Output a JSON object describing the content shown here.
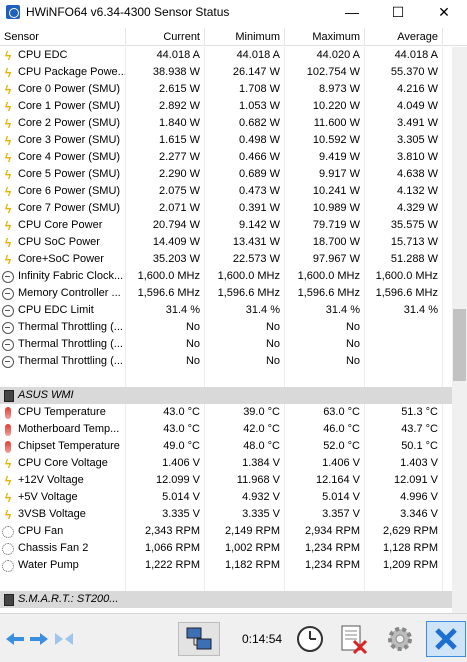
{
  "window": {
    "title": "HWiNFO64 v6.34-4300 Sensor Status",
    "minimize": "—",
    "maximize": "☐",
    "close": "✕"
  },
  "columns": {
    "sensor": "Sensor",
    "current": "Current",
    "minimum": "Minimum",
    "maximum": "Maximum",
    "average": "Average"
  },
  "rows": [
    {
      "icon": "bolt",
      "name": "CPU EDC",
      "cur": "44.018 A",
      "min": "44.018 A",
      "max": "44.020 A",
      "avg": "44.018 A"
    },
    {
      "icon": "bolt",
      "name": "CPU Package Powe...",
      "cur": "38.938 W",
      "min": "26.147 W",
      "max": "102.754 W",
      "avg": "55.370 W"
    },
    {
      "icon": "bolt",
      "name": "Core 0 Power (SMU)",
      "cur": "2.615 W",
      "min": "1.708 W",
      "max": "8.973 W",
      "avg": "4.216 W"
    },
    {
      "icon": "bolt",
      "name": "Core 1 Power (SMU)",
      "cur": "2.892 W",
      "min": "1.053 W",
      "max": "10.220 W",
      "avg": "4.049 W"
    },
    {
      "icon": "bolt",
      "name": "Core 2 Power (SMU)",
      "cur": "1.840 W",
      "min": "0.682 W",
      "max": "11.600 W",
      "avg": "3.491 W"
    },
    {
      "icon": "bolt",
      "name": "Core 3 Power (SMU)",
      "cur": "1.615 W",
      "min": "0.498 W",
      "max": "10.592 W",
      "avg": "3.305 W"
    },
    {
      "icon": "bolt",
      "name": "Core 4 Power (SMU)",
      "cur": "2.277 W",
      "min": "0.466 W",
      "max": "9.419 W",
      "avg": "3.810 W"
    },
    {
      "icon": "bolt",
      "name": "Core 5 Power (SMU)",
      "cur": "2.290 W",
      "min": "0.689 W",
      "max": "9.917 W",
      "avg": "4.638 W"
    },
    {
      "icon": "bolt",
      "name": "Core 6 Power (SMU)",
      "cur": "2.075 W",
      "min": "0.473 W",
      "max": "10.241 W",
      "avg": "4.132 W"
    },
    {
      "icon": "bolt",
      "name": "Core 7 Power (SMU)",
      "cur": "2.071 W",
      "min": "0.391 W",
      "max": "10.989 W",
      "avg": "4.329 W"
    },
    {
      "icon": "bolt",
      "name": "CPU Core Power",
      "cur": "20.794 W",
      "min": "9.142 W",
      "max": "79.719 W",
      "avg": "35.575 W"
    },
    {
      "icon": "bolt",
      "name": "CPU SoC Power",
      "cur": "14.409 W",
      "min": "13.431 W",
      "max": "18.700 W",
      "avg": "15.713 W"
    },
    {
      "icon": "bolt",
      "name": "Core+SoC Power",
      "cur": "35.203 W",
      "min": "22.573 W",
      "max": "97.967 W",
      "avg": "51.288 W"
    },
    {
      "icon": "clock",
      "name": "Infinity Fabric Clock...",
      "cur": "1,600.0 MHz",
      "min": "1,600.0 MHz",
      "max": "1,600.0 MHz",
      "avg": "1,600.0 MHz"
    },
    {
      "icon": "clock",
      "name": "Memory Controller ...",
      "cur": "1,596.6 MHz",
      "min": "1,596.6 MHz",
      "max": "1,596.6 MHz",
      "avg": "1,596.6 MHz"
    },
    {
      "icon": "clock",
      "name": "CPU EDC Limit",
      "cur": "31.4 %",
      "min": "31.4 %",
      "max": "31.4 %",
      "avg": "31.4 %"
    },
    {
      "icon": "clock",
      "name": "Thermal Throttling (...",
      "cur": "No",
      "min": "No",
      "max": "No",
      "avg": ""
    },
    {
      "icon": "clock",
      "name": "Thermal Throttling (...",
      "cur": "No",
      "min": "No",
      "max": "No",
      "avg": ""
    },
    {
      "icon": "clock",
      "name": "Thermal Throttling (...",
      "cur": "No",
      "min": "No",
      "max": "No",
      "avg": ""
    },
    {
      "type": "empty"
    },
    {
      "type": "group",
      "name": "ASUS WMI"
    },
    {
      "icon": "temp",
      "name": "CPU Temperature",
      "cur": "43.0 °C",
      "min": "39.0 °C",
      "max": "63.0 °C",
      "avg": "51.3 °C"
    },
    {
      "icon": "temp",
      "name": "Motherboard Temp...",
      "cur": "43.0 °C",
      "min": "42.0 °C",
      "max": "46.0 °C",
      "avg": "43.7 °C"
    },
    {
      "icon": "temp",
      "name": "Chipset Temperature",
      "cur": "49.0 °C",
      "min": "48.0 °C",
      "max": "52.0 °C",
      "avg": "50.1 °C"
    },
    {
      "icon": "volt",
      "name": "CPU Core Voltage",
      "cur": "1.406 V",
      "min": "1.384 V",
      "max": "1.406 V",
      "avg": "1.403 V"
    },
    {
      "icon": "volt",
      "name": "+12V Voltage",
      "cur": "12.099 V",
      "min": "11.968 V",
      "max": "12.164 V",
      "avg": "12.091 V"
    },
    {
      "icon": "volt",
      "name": "+5V Voltage",
      "cur": "5.014 V",
      "min": "4.932 V",
      "max": "5.014 V",
      "avg": "4.996 V"
    },
    {
      "icon": "volt",
      "name": "3VSB Voltage",
      "cur": "3.335 V",
      "min": "3.335 V",
      "max": "3.357 V",
      "avg": "3.346 V"
    },
    {
      "icon": "fan",
      "name": "CPU Fan",
      "cur": "2,343 RPM",
      "min": "2,149 RPM",
      "max": "2,934 RPM",
      "avg": "2,629 RPM"
    },
    {
      "icon": "fan",
      "name": "Chassis Fan 2",
      "cur": "1,066 RPM",
      "min": "1,002 RPM",
      "max": "1,234 RPM",
      "avg": "1,128 RPM"
    },
    {
      "icon": "fan",
      "name": "Water Pump",
      "cur": "1,222 RPM",
      "min": "1,182 RPM",
      "max": "1,234 RPM",
      "avg": "1,209 RPM"
    },
    {
      "type": "empty"
    },
    {
      "type": "group",
      "name": "S.M.A.R.T.: ST200..."
    }
  ],
  "toolbar": {
    "elapsed": "0:14:54"
  }
}
